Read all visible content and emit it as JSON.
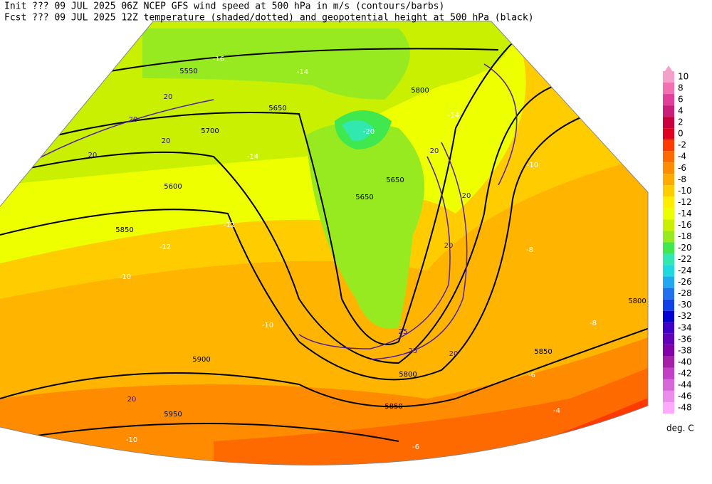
{
  "header": {
    "init_line": "Init  ??? 09 JUL 2025 06Z  NCEP GFS wind speed at 500 hPa in m/s (contours/barbs)",
    "fcst_line": "Fcst ??? 09 JUL 2025 12Z  temperature (shaded/dotted) and geopotential height at 500 hPa (black)"
  },
  "legend": {
    "levels": [
      10,
      8,
      6,
      4,
      2,
      0,
      -2,
      -4,
      -6,
      -8,
      -10,
      -12,
      -14,
      -16,
      -18,
      -20,
      -22,
      -24,
      -26,
      -28,
      -30,
      -32,
      -34,
      -36,
      -38,
      -40,
      -42,
      -44,
      -46,
      -48
    ],
    "colors": [
      "#f5a0c8",
      "#f070b0",
      "#e0409a",
      "#c8207a",
      "#c80040",
      "#e00020",
      "#ff3a00",
      "#ff6a00",
      "#ff8c00",
      "#ffaa00",
      "#ffcc00",
      "#ffee00",
      "#eaff00",
      "#c8f000",
      "#98ea20",
      "#40e850",
      "#30e8b0",
      "#20d8e0",
      "#20a8f0",
      "#2070f0",
      "#1040e8",
      "#0000d0",
      "#4000c8",
      "#6400b8",
      "#8400a8",
      "#a420a8",
      "#c040c8",
      "#d868d8",
      "#ec8cec",
      "#ffaaff"
    ],
    "unit": "deg. C"
  },
  "map": {
    "height_labels": [
      5550,
      5600,
      5650,
      5700,
      5800,
      5650,
      5850,
      5900,
      5950,
      5850,
      5800,
      5850,
      5800,
      5650
    ],
    "temperature_labels": [
      -16,
      -14,
      -20,
      -12,
      -12,
      -10,
      -10,
      -14,
      -10,
      -8,
      -8,
      -6,
      -6,
      -4,
      -10,
      -14
    ],
    "speed_labels": [
      20,
      20,
      20,
      20,
      20,
      20,
      20,
      25,
      25,
      20,
      20
    ]
  }
}
